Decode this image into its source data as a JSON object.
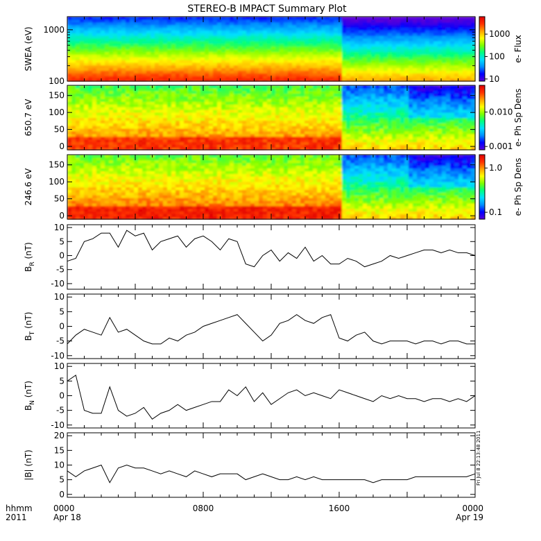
{
  "title": "STEREO-B IMPACT Summary Plot",
  "stamp": "Fri Jul  8 22:13:48 2011",
  "footer": {
    "row1_label": "hhmm",
    "row2_label": "2011",
    "ticks": [
      {
        "time": "0000",
        "date": "Apr 18",
        "hour": 0
      },
      {
        "time": "0800",
        "date": "",
        "hour": 8
      },
      {
        "time": "1600",
        "date": "",
        "hour": 16
      },
      {
        "time": "0000",
        "date": "Apr 19",
        "hour": 24
      }
    ]
  },
  "colors": {
    "spectrogram": [
      "#5a00d8",
      "#0000ff",
      "#0090ff",
      "#00e0ff",
      "#00ff80",
      "#80ff00",
      "#ffff00",
      "#ffa000",
      "#ff3000",
      "#e00000"
    ],
    "line": "#000000",
    "frame": "#000000"
  },
  "chart_data": [
    {
      "type": "heatmap",
      "ylabel": "SWEA (eV)",
      "yscale": "log",
      "ylim": [
        100,
        1800
      ],
      "yticks": [
        "100",
        "1000"
      ],
      "ytick_values": [
        100,
        1000
      ],
      "colorbar_label": "e- Flux",
      "colorbar_scale": "log",
      "colorbar_ticks": [
        "10",
        "100",
        "1000"
      ],
      "colorbar_tick_values": [
        10,
        100,
        1000
      ],
      "colorbar_range": [
        8,
        6000
      ]
    },
    {
      "type": "heatmap",
      "ylabel": "650.7 eV",
      "ylim": [
        -10,
        180
      ],
      "yticks": [
        "0",
        "50",
        "100",
        "150"
      ],
      "ytick_values": [
        0,
        50,
        100,
        150
      ],
      "colorbar_label": "e- Ph Sp Dens",
      "colorbar_scale": "log",
      "colorbar_ticks": [
        "0.001",
        "0.010"
      ],
      "colorbar_tick_values": [
        0.001,
        0.01
      ],
      "colorbar_range": [
        0.0008,
        0.06
      ]
    },
    {
      "type": "heatmap",
      "ylabel": "246.6 eV",
      "ylim": [
        -10,
        180
      ],
      "yticks": [
        "0",
        "50",
        "100",
        "150"
      ],
      "ytick_values": [
        0,
        50,
        100,
        150
      ],
      "colorbar_label": "e- Ph Sp Dens",
      "colorbar_scale": "log",
      "colorbar_ticks": [
        "0.1",
        "1.0"
      ],
      "colorbar_tick_values": [
        0.1,
        1.0
      ],
      "colorbar_range": [
        0.07,
        2.0
      ]
    },
    {
      "type": "line",
      "ylabel": "B",
      "ylabel_sub": "R",
      "ylabel_unit": "(nT)",
      "ylim": [
        -12,
        11
      ],
      "yticks": [
        "-10",
        "-5",
        "0",
        "5",
        "10"
      ],
      "ytick_values": [
        -10,
        -5,
        0,
        5,
        10
      ],
      "x": [
        0,
        0.5,
        1.0,
        1.5,
        2.0,
        2.5,
        3.0,
        3.5,
        4.0,
        4.5,
        5.0,
        5.5,
        6.0,
        6.5,
        7.0,
        7.5,
        8.0,
        8.5,
        9.0,
        9.5,
        10.0,
        10.5,
        11.0,
        11.5,
        12.0,
        12.5,
        13.0,
        13.5,
        14.0,
        14.5,
        15.0,
        15.5,
        16.0,
        16.5,
        17.0,
        17.5,
        18.0,
        18.5,
        19.0,
        19.5,
        20.0,
        20.5,
        21.0,
        21.5,
        22.0,
        22.5,
        23.0,
        23.5,
        24.0
      ],
      "y": [
        -2,
        -1,
        5,
        6,
        8,
        8,
        3,
        9,
        7,
        8,
        2,
        5,
        6,
        7,
        3,
        6,
        7,
        5,
        2,
        6,
        5,
        -3,
        -4,
        0,
        2,
        -2,
        1,
        -1,
        3,
        -2,
        0,
        -3,
        -3,
        -1,
        -2,
        -4,
        -3,
        -2,
        0,
        -1,
        0,
        1,
        2,
        2,
        1,
        2,
        1,
        1,
        0
      ],
      "x_ticks_hours": [
        0,
        8,
        16,
        24
      ]
    },
    {
      "type": "line",
      "ylabel": "B",
      "ylabel_sub": "T",
      "ylabel_unit": "(nT)",
      "ylim": [
        -11,
        11
      ],
      "yticks": [
        "-10",
        "-5",
        "0",
        "5",
        "10"
      ],
      "ytick_values": [
        -10,
        -5,
        0,
        5,
        10
      ],
      "x": [
        0,
        0.5,
        1.0,
        1.5,
        2.0,
        2.5,
        3.0,
        3.5,
        4.0,
        4.5,
        5.0,
        5.5,
        6.0,
        6.5,
        7.0,
        7.5,
        8.0,
        8.5,
        9.0,
        9.5,
        10.0,
        10.5,
        11.0,
        11.5,
        12.0,
        12.5,
        13.0,
        13.5,
        14.0,
        14.5,
        15.0,
        15.5,
        16.0,
        16.5,
        17.0,
        17.5,
        18.0,
        18.5,
        19.0,
        19.5,
        20.0,
        20.5,
        21.0,
        21.5,
        22.0,
        22.5,
        23.0,
        23.5,
        24.0
      ],
      "y": [
        -6,
        -3,
        -1,
        -2,
        -3,
        3,
        -2,
        -1,
        -3,
        -5,
        -6,
        -6,
        -4,
        -5,
        -3,
        -2,
        0,
        1,
        2,
        3,
        4,
        1,
        -2,
        -5,
        -3,
        1,
        2,
        4,
        2,
        1,
        3,
        4,
        -4,
        -5,
        -3,
        -2,
        -5,
        -6,
        -5,
        -5,
        -5,
        -6,
        -5,
        -5,
        -6,
        -5,
        -5,
        -6,
        -6
      ],
      "x_ticks_hours": [
        0,
        8,
        16,
        24
      ]
    },
    {
      "type": "line",
      "ylabel": "B",
      "ylabel_sub": "N",
      "ylabel_unit": "(nT)",
      "ylim": [
        -11,
        11
      ],
      "yticks": [
        "-10",
        "-5",
        "0",
        "5",
        "10"
      ],
      "ytick_values": [
        -10,
        -5,
        0,
        5,
        10
      ],
      "x": [
        0,
        0.5,
        1.0,
        1.5,
        2.0,
        2.5,
        3.0,
        3.5,
        4.0,
        4.5,
        5.0,
        5.5,
        6.0,
        6.5,
        7.0,
        7.5,
        8.0,
        8.5,
        9.0,
        9.5,
        10.0,
        10.5,
        11.0,
        11.5,
        12.0,
        12.5,
        13.0,
        13.5,
        14.0,
        14.5,
        15.0,
        15.5,
        16.0,
        16.5,
        17.0,
        17.5,
        18.0,
        18.5,
        19.0,
        19.5,
        20.0,
        20.5,
        21.0,
        21.5,
        22.0,
        22.5,
        23.0,
        23.5,
        24.0
      ],
      "y": [
        5,
        7,
        -5,
        -6,
        -6,
        3,
        -5,
        -7,
        -6,
        -4,
        -8,
        -6,
        -5,
        -3,
        -5,
        -4,
        -3,
        -2,
        -2,
        2,
        0,
        3,
        -2,
        1,
        -3,
        -1,
        1,
        2,
        0,
        1,
        0,
        -1,
        2,
        1,
        0,
        -1,
        -2,
        0,
        -1,
        0,
        -1,
        -1,
        -2,
        -1,
        -1,
        -2,
        -1,
        -2,
        0
      ],
      "x_ticks_hours": [
        0,
        8,
        16,
        24
      ]
    },
    {
      "type": "line",
      "ylabel": "|B|",
      "ylabel_unit": "(nT)",
      "ylim": [
        -1,
        21
      ],
      "yticks": [
        "0",
        "5",
        "10",
        "15",
        "20"
      ],
      "ytick_values": [
        0,
        5,
        10,
        15,
        20
      ],
      "x": [
        0,
        0.5,
        1.0,
        1.5,
        2.0,
        2.5,
        3.0,
        3.5,
        4.0,
        4.5,
        5.0,
        5.5,
        6.0,
        6.5,
        7.0,
        7.5,
        8.0,
        8.5,
        9.0,
        9.5,
        10.0,
        10.5,
        11.0,
        11.5,
        12.0,
        12.5,
        13.0,
        13.5,
        14.0,
        14.5,
        15.0,
        15.5,
        16.0,
        16.5,
        17.0,
        17.5,
        18.0,
        18.5,
        19.0,
        19.5,
        20.0,
        20.5,
        21.0,
        21.5,
        22.0,
        22.5,
        23.0,
        23.5,
        24.0
      ],
      "y": [
        8,
        6,
        8,
        9,
        10,
        4,
        9,
        10,
        9,
        9,
        8,
        7,
        8,
        7,
        6,
        8,
        7,
        6,
        7,
        7,
        7,
        5,
        6,
        7,
        6,
        5,
        5,
        6,
        5,
        6,
        5,
        5,
        5,
        5,
        5,
        5,
        4,
        5,
        5,
        5,
        5,
        6,
        6,
        6,
        6,
        6,
        6,
        6,
        7
      ],
      "x_ticks_hours": [
        0,
        8,
        16,
        24
      ]
    }
  ]
}
